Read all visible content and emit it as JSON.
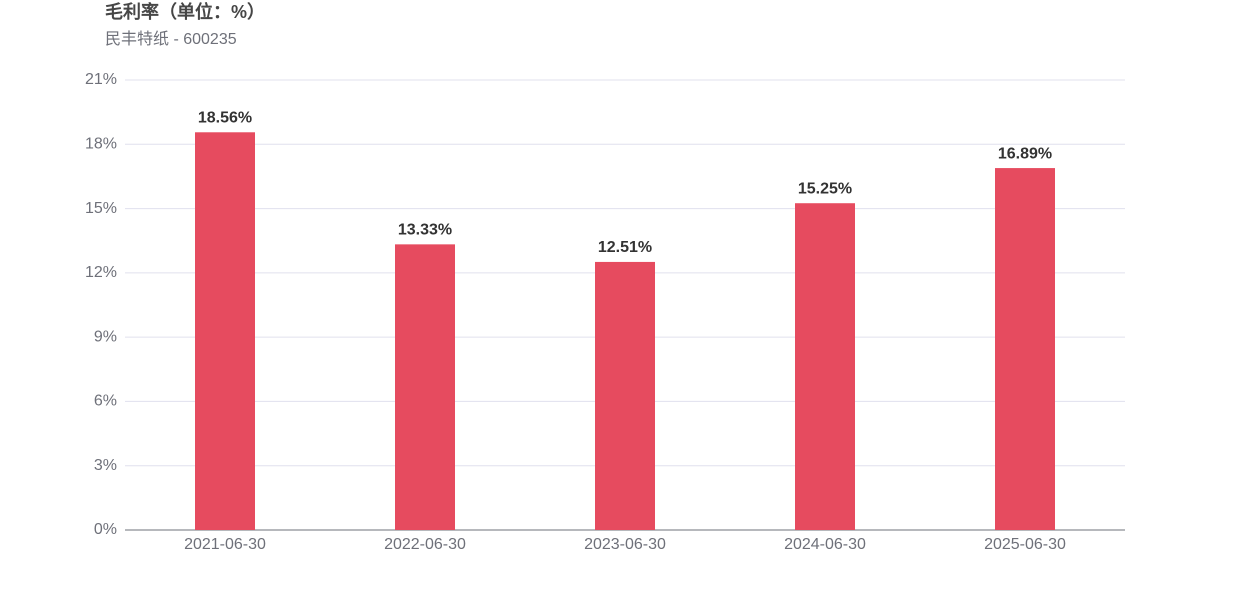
{
  "chart_data": {
    "type": "bar",
    "title": "毛利率（单位：%）",
    "subtitle": "民丰特纸 - 600235",
    "categories": [
      "2021-06-30",
      "2022-06-30",
      "2023-06-30",
      "2024-06-30",
      "2025-06-30"
    ],
    "values": [
      18.56,
      13.33,
      12.51,
      15.25,
      16.89
    ],
    "value_labels": [
      "18.56%",
      "13.33%",
      "12.51%",
      "15.25%",
      "16.89%"
    ],
    "color": "#e64b5f",
    "ylim": [
      0,
      21
    ],
    "yticks": [
      {
        "value": 0,
        "label": "0%"
      },
      {
        "value": 3,
        "label": "3%"
      },
      {
        "value": 6,
        "label": "6%"
      },
      {
        "value": 9,
        "label": "9%"
      },
      {
        "value": 12,
        "label": "12%"
      },
      {
        "value": 15,
        "label": "15%"
      },
      {
        "value": 18,
        "label": "18%"
      },
      {
        "value": 21,
        "label": "21%"
      }
    ],
    "grid": true
  }
}
